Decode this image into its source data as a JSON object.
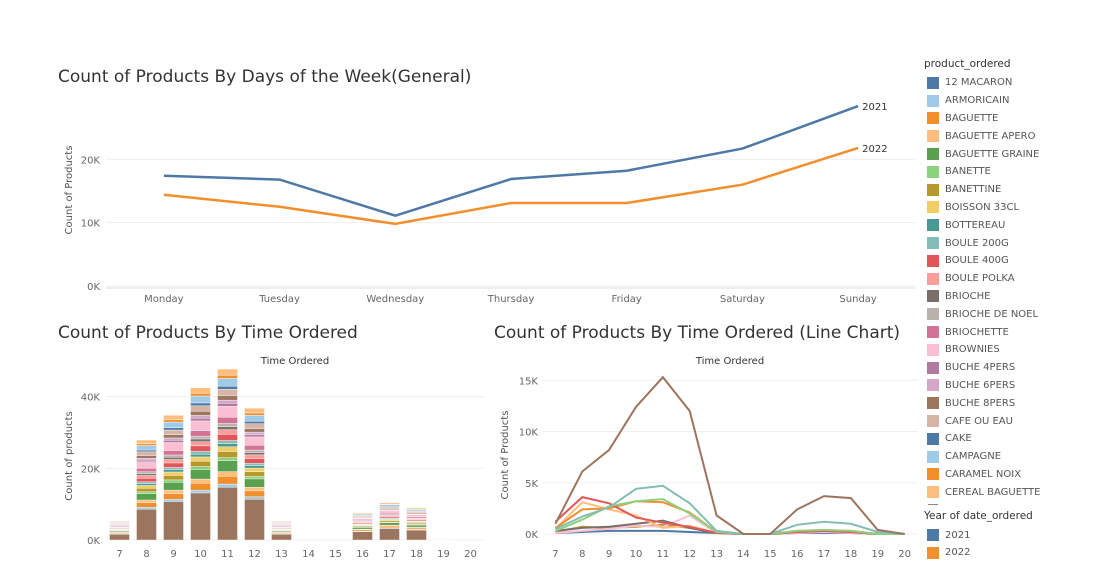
{
  "chart_data": [
    {
      "type": "line",
      "title": "Count of Products By Days of the Week(General)",
      "ylabel": "Count of Products",
      "categories": [
        "Monday",
        "Tuesday",
        "Wednesday",
        "Thursday",
        "Friday",
        "Saturday",
        "Sunday"
      ],
      "yticks": [
        "0K",
        "10K",
        "20K"
      ],
      "ylim": [
        0,
        30000
      ],
      "series": [
        {
          "name": "2021",
          "color": "#4e79a7",
          "values": [
            17400,
            16800,
            11100,
            16900,
            18200,
            21700,
            28400
          ]
        },
        {
          "name": "2022",
          "color": "#f28e2b",
          "values": [
            14400,
            12500,
            9800,
            13100,
            13100,
            16000,
            21800
          ]
        }
      ]
    },
    {
      "type": "bar",
      "stacked": true,
      "title": "Count of Products By Time Ordered",
      "xlabel": "Time Ordered",
      "ylabel": "Count of products",
      "categories": [
        "7",
        "8",
        "9",
        "10",
        "11",
        "12",
        "13",
        "14",
        "15",
        "16",
        "17",
        "18",
        "19",
        "20"
      ],
      "yticks": [
        "0K",
        "20K",
        "40K"
      ],
      "ylim": [
        0,
        48000
      ],
      "totals": [
        5300,
        27900,
        34800,
        42500,
        47700,
        36800,
        5300,
        0,
        0,
        7600,
        10400,
        9000,
        300,
        0
      ]
    },
    {
      "type": "line",
      "title": "Count of Products By Time Ordered (Line Chart)",
      "xlabel": "Time Ordered",
      "ylabel": "Count of Products",
      "categories": [
        "7",
        "8",
        "9",
        "10",
        "11",
        "12",
        "13",
        "14",
        "15",
        "16",
        "17",
        "18",
        "19",
        "20"
      ],
      "yticks": [
        "0K",
        "5K",
        "10K",
        "15K"
      ],
      "ylim": [
        0,
        16000
      ],
      "series": [
        {
          "name": "BUCHE 8PERS",
          "color": "#9c755f",
          "values": [
            1000,
            6100,
            8200,
            12400,
            15300,
            12000,
            1800,
            0,
            0,
            2400,
            3700,
            3500,
            400,
            0
          ]
        },
        {
          "name": "BOULE 200G",
          "color": "#86bcb6",
          "values": [
            500,
            1700,
            2600,
            4400,
            4700,
            3000,
            300,
            0,
            0,
            900,
            1200,
            1000,
            200,
            0
          ]
        },
        {
          "name": "BANETTE",
          "color": "#8cd17d",
          "values": [
            300,
            1400,
            2700,
            3200,
            3400,
            2000,
            200,
            0,
            0,
            300,
            400,
            300,
            0,
            0
          ]
        },
        {
          "name": "BOULE 400G",
          "color": "#e15759",
          "values": [
            1200,
            3600,
            3000,
            1600,
            1100,
            700,
            100,
            0,
            0,
            200,
            300,
            200,
            0,
            0
          ]
        },
        {
          "name": "BAGUETTE",
          "color": "#f28e2b",
          "values": [
            600,
            2400,
            2500,
            3200,
            3100,
            2100,
            200,
            0,
            0,
            300,
            300,
            300,
            0,
            0
          ]
        },
        {
          "name": "BAGUETTE APERO",
          "color": "#ffbe7d",
          "values": [
            500,
            3100,
            2400,
            1800,
            600,
            800,
            100,
            0,
            0,
            300,
            400,
            300,
            0,
            0
          ]
        },
        {
          "name": "BRIOCHE",
          "color": "#79706e",
          "values": [
            300,
            600,
            700,
            1000,
            1300,
            600,
            100,
            0,
            0,
            200,
            300,
            200,
            0,
            0
          ]
        },
        {
          "name": "BROWNIES",
          "color": "#fabfd2",
          "values": [
            100,
            300,
            500,
            800,
            700,
            1800,
            100,
            0,
            0,
            100,
            200,
            100,
            0,
            0
          ]
        },
        {
          "name": "12 MACARON",
          "color": "#4e79a7",
          "values": [
            100,
            200,
            300,
            300,
            300,
            200,
            100,
            0,
            0,
            100,
            100,
            100,
            0,
            0
          ]
        },
        {
          "name": "BANETTINE",
          "color": "#b6992d",
          "values": [
            200,
            700,
            600,
            700,
            900,
            600,
            100,
            0,
            0,
            200,
            200,
            200,
            0,
            0
          ]
        }
      ]
    }
  ],
  "legend": {
    "product_title": "product_ordered",
    "products": [
      {
        "label": "12 MACARON",
        "color": "#4e79a7"
      },
      {
        "label": "ARMORICAIN",
        "color": "#a0cbe8"
      },
      {
        "label": "BAGUETTE",
        "color": "#f28e2b"
      },
      {
        "label": "BAGUETTE APERO",
        "color": "#ffbe7d"
      },
      {
        "label": "BAGUETTE GRAINE",
        "color": "#59a14f"
      },
      {
        "label": "BANETTE",
        "color": "#8cd17d"
      },
      {
        "label": "BANETTINE",
        "color": "#b6992d"
      },
      {
        "label": "BOISSON 33CL",
        "color": "#f1ce63"
      },
      {
        "label": "BOTTEREAU",
        "color": "#499894"
      },
      {
        "label": "BOULE 200G",
        "color": "#86bcb6"
      },
      {
        "label": "BOULE 400G",
        "color": "#e15759"
      },
      {
        "label": "BOULE POLKA",
        "color": "#ff9d9a"
      },
      {
        "label": "BRIOCHE",
        "color": "#79706e"
      },
      {
        "label": "BRIOCHE DE NOEL",
        "color": "#bab0ac"
      },
      {
        "label": "BRIOCHETTE",
        "color": "#d37295"
      },
      {
        "label": "BROWNIES",
        "color": "#fabfd2"
      },
      {
        "label": "BUCHE 4PERS",
        "color": "#b07aa1"
      },
      {
        "label": "BUCHE 6PERS",
        "color": "#d4a6c8"
      },
      {
        "label": "BUCHE 8PERS",
        "color": "#9d7660"
      },
      {
        "label": "CAFE OU EAU",
        "color": "#d7b5a6"
      },
      {
        "label": "CAKE",
        "color": "#4e79a7"
      },
      {
        "label": "CAMPAGNE",
        "color": "#a0cbe8"
      },
      {
        "label": "CARAMEL NOIX",
        "color": "#f28e2b"
      },
      {
        "label": "CEREAL BAGUETTE",
        "color": "#ffbe7d"
      }
    ],
    "year_title": "Year of date_ordered",
    "years": [
      {
        "label": "2021",
        "color": "#4e79a7"
      },
      {
        "label": "2022",
        "color": "#f28e2b"
      }
    ]
  }
}
